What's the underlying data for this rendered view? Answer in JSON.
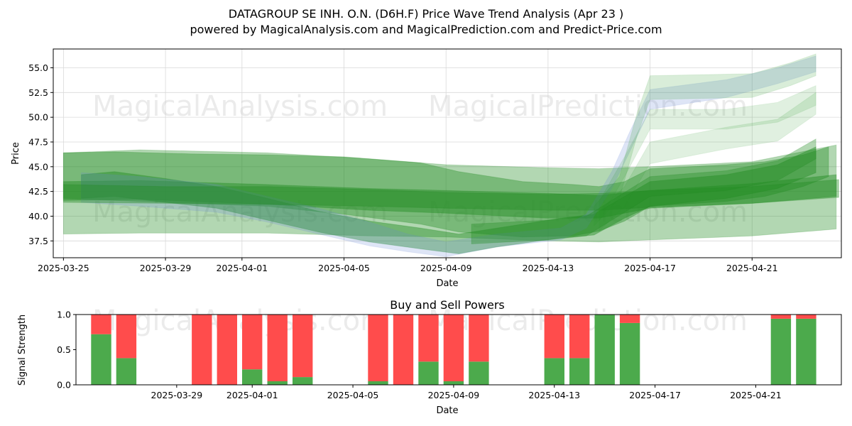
{
  "chart_data": [
    {
      "type": "area",
      "title": "DATAGROUP SE  INH. O.N. (D6H.F) Price Wave Trend Analysis (Apr 23 )",
      "subtitle": "powered by MagicalAnalysis.com and MagicalPrediction.com and Predict-Price.com",
      "xlabel": "Date",
      "ylabel": "Price",
      "xlim_day_offset": [
        -0.4,
        30.5
      ],
      "ylim": [
        35.8,
        56.9
      ],
      "x_ticks": [
        {
          "label": "2025-03-25",
          "day": 0
        },
        {
          "label": "2025-03-29",
          "day": 4
        },
        {
          "label": "2025-04-01",
          "day": 7
        },
        {
          "label": "2025-04-05",
          "day": 11
        },
        {
          "label": "2025-04-09",
          "day": 15
        },
        {
          "label": "2025-04-13",
          "day": 19
        },
        {
          "label": "2025-04-17",
          "day": 23
        },
        {
          "label": "2025-04-21",
          "day": 27
        }
      ],
      "y_ticks": [
        "37.5",
        "40.0",
        "42.5",
        "45.0",
        "47.5",
        "50.0",
        "52.5",
        "55.0"
      ],
      "watermarks": [
        "MagicalAnalysis.com",
        "MagicalPrediction.com"
      ],
      "series": [
        {
          "name": "band-wide",
          "color": "#228B22",
          "opacity": 0.35,
          "x": [
            0,
            3,
            8,
            12,
            15,
            19,
            21,
            23,
            27,
            30.3
          ],
          "upper": [
            46.4,
            46.7,
            46.4,
            45.8,
            45.2,
            44.9,
            44.8,
            45.0,
            45.5,
            47.2
          ],
          "lower": [
            38.2,
            38.3,
            38.3,
            38.0,
            37.9,
            37.5,
            37.4,
            37.6,
            38.0,
            38.7
          ]
        },
        {
          "name": "band-mid",
          "color": "#228B22",
          "opacity": 0.45,
          "x": [
            0,
            3,
            8,
            12,
            15,
            19,
            21,
            23,
            27,
            30.3
          ],
          "upper": [
            43.5,
            43.6,
            43.2,
            42.8,
            42.6,
            42.3,
            42.1,
            42.6,
            43.3,
            44.2
          ],
          "lower": [
            41.6,
            41.7,
            41.2,
            40.6,
            40.3,
            39.8,
            39.8,
            40.8,
            41.3,
            42.0
          ]
        },
        {
          "name": "band-upper-path",
          "color": "#228B22",
          "opacity": 0.4,
          "x": [
            0,
            2,
            5,
            8,
            11,
            14,
            15.5,
            18,
            20,
            21,
            22,
            23,
            26,
            27.5,
            29,
            30
          ],
          "upper": [
            46.4,
            46.5,
            46.3,
            46.2,
            46.0,
            45.4,
            44.5,
            43.5,
            43.2,
            43.0,
            43.5,
            44.8,
            45.2,
            45.5,
            46.2,
            47.0
          ],
          "lower": [
            41.8,
            41.6,
            41.3,
            41.0,
            40.2,
            39.2,
            38.4,
            37.9,
            38.0,
            38.5,
            39.5,
            41.0,
            41.5,
            42.0,
            43.0,
            44.0
          ]
        },
        {
          "name": "wave-low-path",
          "color": "#228B22",
          "opacity": 0.45,
          "x": [
            0.7,
            2,
            4,
            6,
            8,
            10,
            12,
            14,
            15.5,
            17,
            19.5,
            20.8,
            22,
            23,
            26,
            28,
            29.5
          ],
          "upper": [
            44.2,
            44.5,
            43.8,
            43.0,
            41.8,
            40.5,
            39.5,
            38.8,
            38.2,
            38.8,
            39.8,
            40.2,
            42.0,
            43.5,
            44.2,
            45.2,
            47.0
          ],
          "lower": [
            41.8,
            42.0,
            41.4,
            40.8,
            39.6,
            38.4,
            37.4,
            36.7,
            36.2,
            36.9,
            37.8,
            38.1,
            39.8,
            41.0,
            41.8,
            42.8,
            44.4
          ]
        },
        {
          "name": "wave-bluish",
          "color": "#6a8ad8",
          "opacity": 0.22,
          "x": [
            0.7,
            3,
            6,
            8,
            10,
            12,
            13.5,
            15,
            17,
            19.5,
            20.5,
            21.5,
            22.2,
            23,
            26,
            28,
            29.5
          ],
          "upper": [
            44.4,
            44.0,
            43.2,
            42.0,
            40.8,
            39.4,
            38.2,
            37.4,
            38.2,
            38.8,
            40.2,
            44.5,
            48.5,
            52.8,
            53.8,
            55.0,
            56.2
          ],
          "lower": [
            41.4,
            41.0,
            40.4,
            39.4,
            38.2,
            37.0,
            36.4,
            35.9,
            36.9,
            37.6,
            38.8,
            42.8,
            46.5,
            50.8,
            52.0,
            53.4,
            54.6
          ]
        },
        {
          "name": "wave-high-light",
          "color": "#2e9b2e",
          "opacity": 0.18,
          "x": [
            20.8,
            21.8,
            22.5,
            23,
            27,
            28.5,
            29.5
          ],
          "upper": [
            41.0,
            44.0,
            50.5,
            54.2,
            54.4,
            55.5,
            56.4
          ],
          "lower": [
            39.0,
            41.8,
            48.2,
            51.8,
            52.0,
            53.2,
            54.2
          ]
        },
        {
          "name": "wave-high-2",
          "color": "#2e9b2e",
          "opacity": 0.15,
          "x": [
            21,
            22,
            23,
            26,
            28,
            29.5
          ],
          "upper": [
            41.5,
            46.0,
            50.8,
            50.8,
            51.5,
            53.2
          ],
          "lower": [
            39.5,
            44.0,
            48.8,
            48.8,
            49.5,
            51.2
          ]
        },
        {
          "name": "wave-high-3",
          "color": "#2e9b2e",
          "opacity": 0.15,
          "x": [
            21,
            22,
            23,
            26,
            28,
            29.5
          ],
          "upper": [
            40.5,
            43.0,
            47.5,
            49.0,
            49.8,
            52.5
          ],
          "lower": [
            38.5,
            41.0,
            45.3,
            46.8,
            47.6,
            50.3
          ]
        },
        {
          "name": "wave-flat-band",
          "color": "#228B22",
          "opacity": 0.4,
          "x": [
            0,
            4,
            8,
            12,
            15,
            19,
            21,
            23,
            27,
            30.4
          ],
          "upper": [
            43.2,
            43.0,
            43.0,
            42.7,
            42.4,
            42.2,
            42.3,
            42.6,
            43.0,
            43.7
          ],
          "lower": [
            41.4,
            41.3,
            41.2,
            41.0,
            40.8,
            40.6,
            40.6,
            40.9,
            41.3,
            41.9
          ]
        },
        {
          "name": "wave-late-rise",
          "color": "#228B22",
          "opacity": 0.35,
          "x": [
            16,
            19,
            20.5,
            22,
            23,
            26,
            28,
            29.5
          ],
          "upper": [
            39.2,
            39.6,
            40.0,
            42.4,
            44.0,
            44.6,
            45.6,
            47.8
          ],
          "lower": [
            37.2,
            37.6,
            38.0,
            40.4,
            42.0,
            42.6,
            43.6,
            45.8
          ]
        }
      ]
    },
    {
      "type": "bar",
      "title": "Buy and Sell Powers",
      "xlabel": "Date",
      "ylabel": "Signal Strength",
      "ylim": [
        0,
        1.0
      ],
      "y_ticks": [
        "0.0",
        "0.5",
        "1.0"
      ],
      "x_ticks": [
        {
          "label": "2025-03-29",
          "day": 4
        },
        {
          "label": "2025-04-01",
          "day": 7
        },
        {
          "label": "2025-04-05",
          "day": 11
        },
        {
          "label": "2025-04-09",
          "day": 15
        },
        {
          "label": "2025-04-13",
          "day": 19
        },
        {
          "label": "2025-04-17",
          "day": 23
        },
        {
          "label": "2025-04-21",
          "day": 27
        }
      ],
      "xlim_day_offset": [
        0,
        30.4
      ],
      "buy_color": "#4caa4c",
      "sell_color": "#ff4c4c",
      "bars": [
        {
          "day": 1,
          "buy": 0.72
        },
        {
          "day": 2,
          "buy": 0.38
        },
        {
          "day": 5,
          "buy": 0.0
        },
        {
          "day": 6,
          "buy": 0.0
        },
        {
          "day": 7,
          "buy": 0.22
        },
        {
          "day": 8,
          "buy": 0.05
        },
        {
          "day": 9,
          "buy": 0.11
        },
        {
          "day": 12,
          "buy": 0.05
        },
        {
          "day": 13,
          "buy": 0.0
        },
        {
          "day": 14,
          "buy": 0.33
        },
        {
          "day": 15,
          "buy": 0.05
        },
        {
          "day": 16,
          "buy": 0.33
        },
        {
          "day": 19,
          "buy": 0.38
        },
        {
          "day": 20,
          "buy": 0.38
        },
        {
          "day": 21,
          "buy": 1.0
        },
        {
          "day": 22,
          "buy": 0.88
        },
        {
          "day": 28,
          "buy": 0.94
        },
        {
          "day": 29,
          "buy": 0.94
        }
      ]
    }
  ]
}
